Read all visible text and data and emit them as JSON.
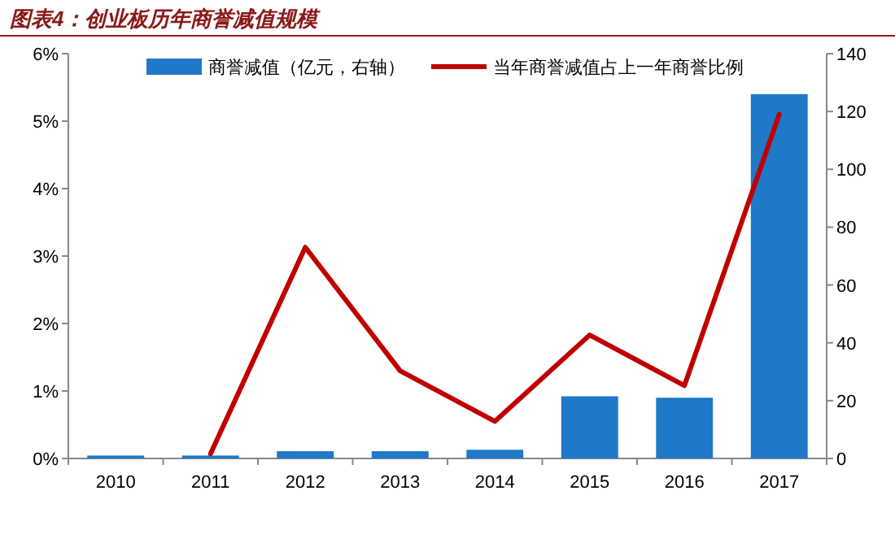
{
  "chart_data": {
    "type": "bar",
    "title": "图表4：创业板历年商誉减值规模",
    "categories": [
      "2010",
      "2011",
      "2012",
      "2013",
      "2014",
      "2015",
      "2016",
      "2017"
    ],
    "series": [
      {
        "name": "商誉减值（亿元，右轴）",
        "axis": "y2",
        "color": "#1f78c8",
        "values": [
          1,
          1,
          2.5,
          2.5,
          3,
          21.5,
          21,
          126
        ]
      },
      {
        "name": "当年商誉减值占上一年商誉比例",
        "type": "line",
        "color": "#c00000",
        "values": [
          null,
          0.07,
          3.13,
          1.3,
          0.55,
          1.83,
          1.08,
          5.1
        ]
      }
    ],
    "ylim": [
      0,
      6
    ],
    "yticks": [
      {
        "value": 0,
        "label": "0%"
      },
      {
        "value": 1,
        "label": "1%"
      },
      {
        "value": 2,
        "label": "2%"
      },
      {
        "value": 3,
        "label": "3%"
      },
      {
        "value": 4,
        "label": "4%"
      },
      {
        "value": 5,
        "label": "5%"
      },
      {
        "value": 6,
        "label": "6%"
      }
    ],
    "y2lim": [
      0,
      140
    ],
    "y2ticks": [
      0,
      20,
      40,
      60,
      80,
      100,
      120,
      140
    ],
    "legend": "top",
    "grid": false,
    "marker": "none",
    "line_style": "solid"
  }
}
